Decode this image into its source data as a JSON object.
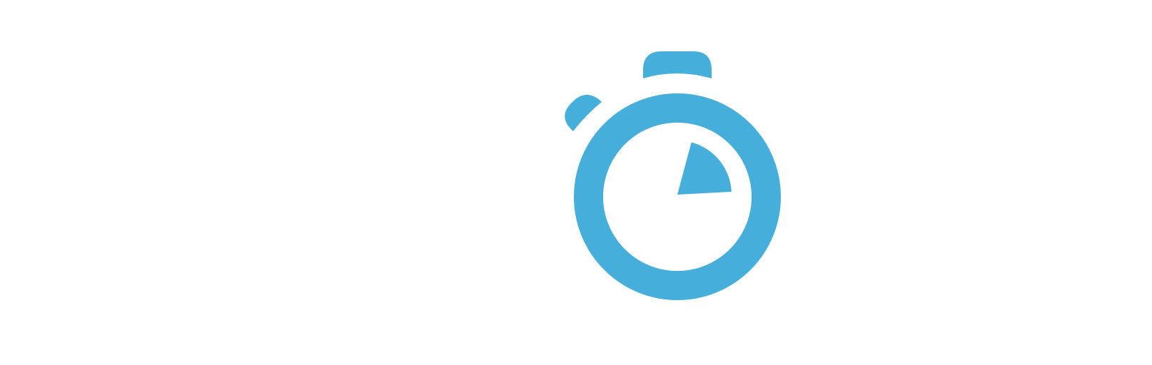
{
  "icon": {
    "name": "stopwatch-icon",
    "color": "#45aedb",
    "background": "#ffffff",
    "elapsed_fraction": 0.2
  }
}
